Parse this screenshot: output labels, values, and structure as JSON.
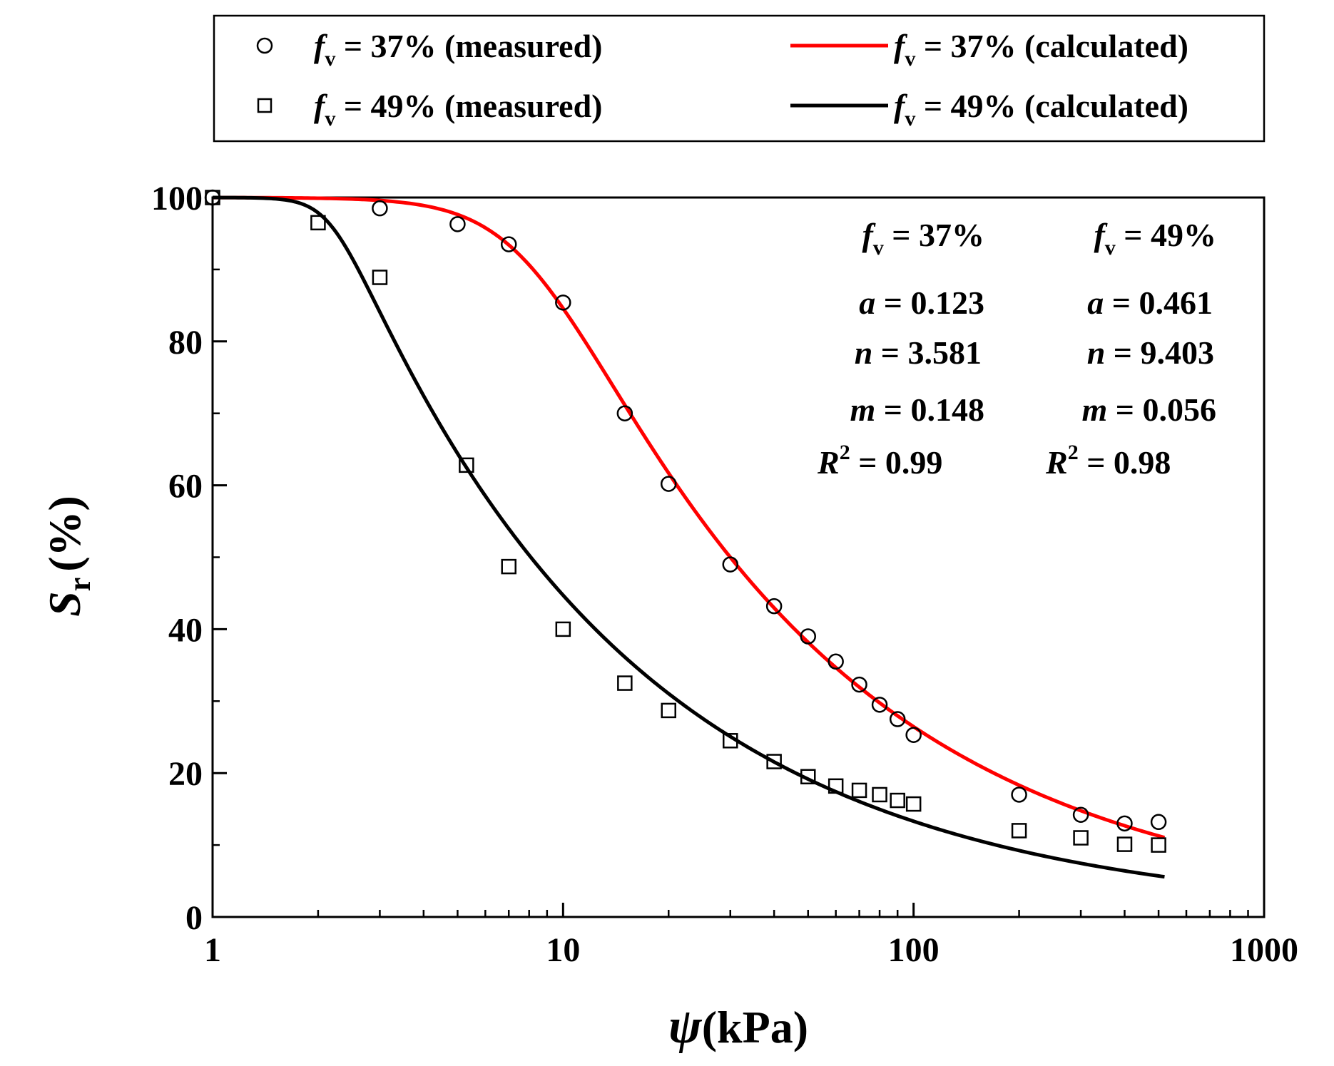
{
  "chart_data": {
    "type": "scatter",
    "x_scale": "log",
    "xlim": [
      1,
      1000
    ],
    "ylim": [
      0,
      100
    ],
    "x_ticks": [
      {
        "value": 1,
        "label": "1"
      },
      {
        "value": 10,
        "label": "10"
      },
      {
        "value": 100,
        "label": "100"
      },
      {
        "value": 1000,
        "label": "1000"
      }
    ],
    "y_ticks": [
      {
        "value": 0,
        "label": "0"
      },
      {
        "value": 20,
        "label": "20"
      },
      {
        "value": 40,
        "label": "40"
      },
      {
        "value": 60,
        "label": "60"
      },
      {
        "value": 80,
        "label": "80"
      },
      {
        "value": 100,
        "label": "100"
      }
    ],
    "xlabel": {
      "symbol": "ψ",
      "unit": "(kPa)"
    },
    "ylabel": {
      "symbol": "S",
      "sub": "r",
      "unit": "(%)"
    },
    "legend": {
      "position": "top (above plot)",
      "entries": [
        {
          "symbol": "f",
          "sub": "v",
          "text": " = 37% (measured)",
          "marker": "circle"
        },
        {
          "symbol": "f",
          "sub": "v",
          "text": " = 37% (calculated)",
          "marker": "line",
          "color": "#ff0000"
        },
        {
          "symbol": "f",
          "sub": "v",
          "text": " = 49% (measured)",
          "marker": "square"
        },
        {
          "symbol": "f",
          "sub": "v",
          "text": " = 49% (calculated)",
          "marker": "line",
          "color": "#000000"
        }
      ]
    },
    "parameters": [
      {
        "header": {
          "symbol": "f",
          "sub": "v",
          "text": " = 37%"
        },
        "rows": [
          {
            "symbol": "a",
            "text": " = 0.123"
          },
          {
            "symbol": "n",
            "text": " = 3.581"
          },
          {
            "symbol": "m",
            "text": " = 0.148"
          },
          {
            "symbol": "R",
            "sup": "2",
            "text": " = 0.99"
          }
        ]
      },
      {
        "header": {
          "symbol": "f",
          "sub": "v",
          "text": " = 49%"
        },
        "rows": [
          {
            "symbol": "a",
            "text": " = 0.461"
          },
          {
            "symbol": "n",
            "text": " = 9.403"
          },
          {
            "symbol": "m",
            "text": " = 0.056"
          },
          {
            "symbol": "R",
            "sup": "2",
            "text": " = 0.98"
          }
        ]
      }
    ],
    "series": [
      {
        "name": "fv = 37% (measured)",
        "kind": "scatter",
        "marker": "circle",
        "color": "#000000",
        "points": [
          [
            1,
            100
          ],
          [
            3,
            98.5
          ],
          [
            5,
            96.3
          ],
          [
            7,
            93.5
          ],
          [
            10,
            85.4
          ],
          [
            15,
            70
          ],
          [
            20,
            60.2
          ],
          [
            30,
            49
          ],
          [
            40,
            43.2
          ],
          [
            50,
            39
          ],
          [
            60,
            35.5
          ],
          [
            70,
            32.3
          ],
          [
            80,
            29.5
          ],
          [
            90,
            27.5
          ],
          [
            100,
            25.3
          ],
          [
            200,
            17
          ],
          [
            300,
            14.2
          ],
          [
            400,
            13
          ],
          [
            500,
            13.2
          ]
        ]
      },
      {
        "name": "fv = 49% (measured)",
        "kind": "scatter",
        "marker": "square",
        "color": "#000000",
        "points": [
          [
            1,
            100
          ],
          [
            2,
            96.5
          ],
          [
            3,
            88.9
          ],
          [
            5.3,
            62.8
          ],
          [
            7,
            48.7
          ],
          [
            10,
            40
          ],
          [
            15,
            32.5
          ],
          [
            20,
            28.7
          ],
          [
            30,
            24.5
          ],
          [
            40,
            21.6
          ],
          [
            50,
            19.5
          ],
          [
            60,
            18.2
          ],
          [
            70,
            17.6
          ],
          [
            80,
            17
          ],
          [
            90,
            16.2
          ],
          [
            100,
            15.7
          ],
          [
            200,
            12
          ],
          [
            300,
            11
          ],
          [
            400,
            10.1
          ],
          [
            500,
            10
          ]
        ]
      },
      {
        "name": "fv = 37% (calculated)",
        "kind": "line",
        "color": "#ff0000",
        "model": {
          "a": 0.123,
          "n": 3.581,
          "m": 0.148
        },
        "x_range": [
          1,
          520
        ]
      },
      {
        "name": "fv = 49% (calculated)",
        "kind": "line",
        "color": "#000000",
        "model": {
          "a": 0.461,
          "n": 9.403,
          "m": 0.056
        },
        "x_range": [
          1,
          520
        ]
      }
    ]
  }
}
